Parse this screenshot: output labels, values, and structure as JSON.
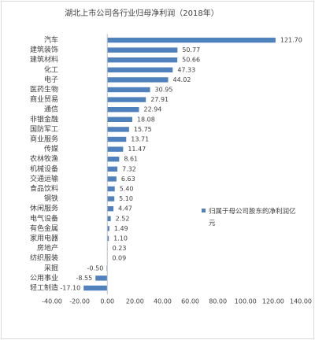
{
  "chart_data": {
    "type": "bar",
    "orientation": "horizontal",
    "title": "湖北上市公司各行业归母净利润（2018年）",
    "categories": [
      "汽车",
      "建筑装饰",
      "建筑材料",
      "化工",
      "电子",
      "医药生物",
      "商业贸易",
      "通信",
      "非银金融",
      "国防军工",
      "商业服务",
      "传媒",
      "农林牧渔",
      "机械设备",
      "交通运输",
      "食品饮料",
      "钢铁",
      "休闲服务",
      "电气设备",
      "有色金属",
      "家用电器",
      "房地产",
      "纺织服装",
      "采掘",
      "公用事业",
      "轻工制造"
    ],
    "series": [
      {
        "name": "归属于母公司股东的净利润亿元",
        "color": "#4f81bd",
        "values": [
          121.7,
          50.77,
          50.66,
          47.33,
          44.02,
          30.95,
          27.91,
          22.94,
          18.08,
          15.75,
          13.71,
          11.47,
          8.61,
          7.32,
          6.63,
          5.4,
          5.1,
          4.47,
          2.52,
          1.49,
          1.1,
          0.23,
          0.09,
          -0.5,
          -8.55,
          -17.1
        ],
        "value_labels": [
          "121.70",
          "50.77",
          "50.66",
          "47.33",
          "44.02",
          "30.95",
          "27.91",
          "22.94",
          "18.08",
          "15.75",
          "13.71",
          "11.47",
          "8.61",
          "7.32",
          "6.63",
          "5.40",
          "5.10",
          "4.47",
          "2.52",
          "1.49",
          "1.10",
          "0.23",
          "0.09",
          "-0.50",
          "-8.55",
          "-17.10"
        ]
      }
    ],
    "xlim": [
      -40,
      140
    ],
    "xticks": [
      {
        "value": -40,
        "label": "-40.00"
      },
      {
        "value": -20,
        "label": "-20.00"
      },
      {
        "value": 0,
        "label": "0.00"
      },
      {
        "value": 20,
        "label": "20.00"
      },
      {
        "value": 40,
        "label": "40.00"
      },
      {
        "value": 60,
        "label": "60.00"
      },
      {
        "value": 80,
        "label": "80.00"
      },
      {
        "value": 100,
        "label": "100.00"
      },
      {
        "value": 120,
        "label": "120.00"
      },
      {
        "value": 140,
        "label": "140.00"
      }
    ],
    "grid": false,
    "legend": "right"
  }
}
